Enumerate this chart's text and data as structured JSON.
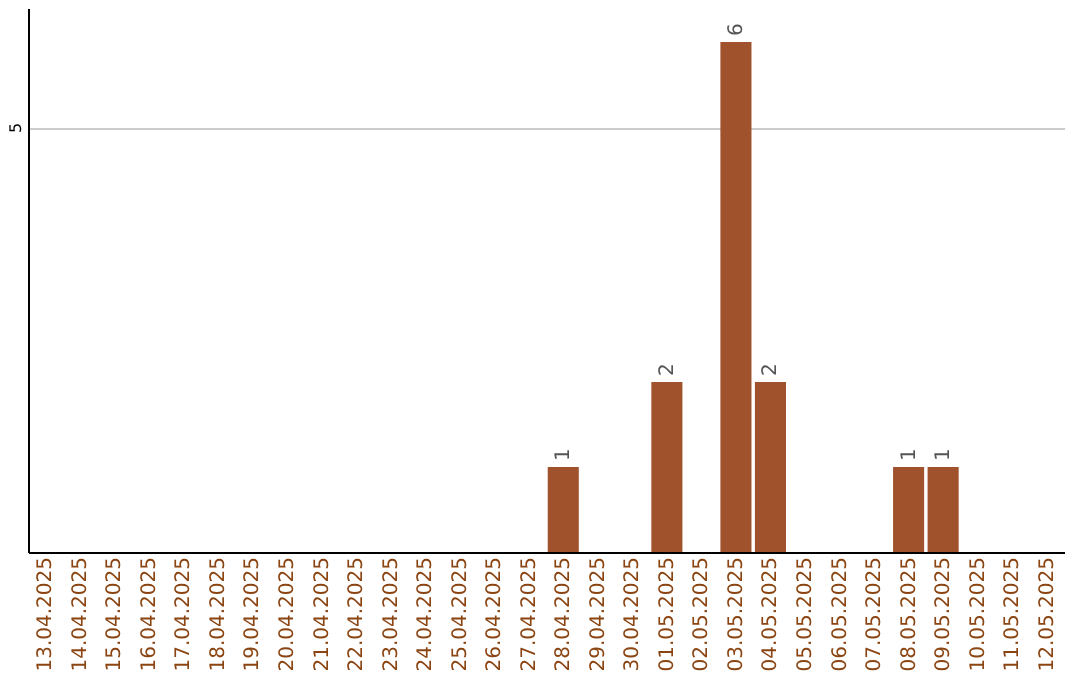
{
  "chart_data": {
    "type": "bar",
    "categories": [
      "13.04.2025",
      "14.04.2025",
      "15.04.2025",
      "16.04.2025",
      "17.04.2025",
      "18.04.2025",
      "19.04.2025",
      "20.04.2025",
      "21.04.2025",
      "22.04.2025",
      "23.04.2025",
      "24.04.2025",
      "25.04.2025",
      "26.04.2025",
      "27.04.2025",
      "28.04.2025",
      "29.04.2025",
      "30.04.2025",
      "01.05.2025",
      "02.05.2025",
      "03.05.2025",
      "04.05.2025",
      "05.05.2025",
      "06.05.2025",
      "07.05.2025",
      "08.05.2025",
      "09.05.2025",
      "10.05.2025",
      "11.05.2025",
      "12.05.2025"
    ],
    "values": [
      null,
      null,
      null,
      null,
      null,
      null,
      null,
      null,
      null,
      null,
      null,
      null,
      null,
      null,
      null,
      1,
      null,
      null,
      2,
      null,
      6,
      2,
      null,
      null,
      null,
      1,
      1,
      null,
      null,
      null
    ],
    "color": "#a0522d",
    "ylim": [
      0,
      6.4
    ],
    "yticks": [
      5
    ],
    "grid": "y",
    "data_labels": true
  }
}
